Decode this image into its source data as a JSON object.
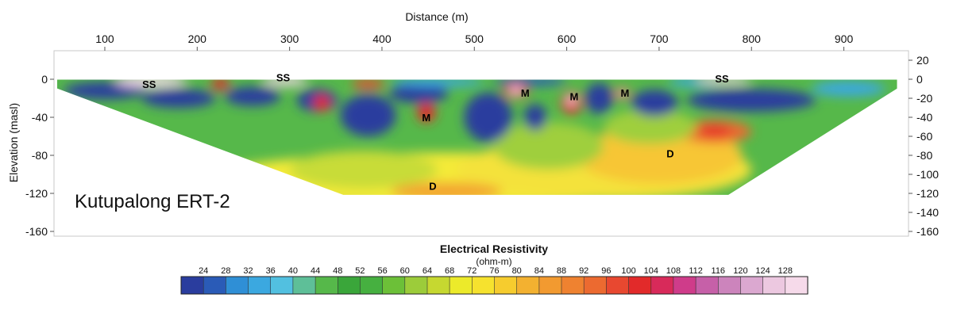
{
  "chart_data": {
    "type": "heatmap",
    "title": "Kutupalong ERT-2",
    "xlabel": "Distance (m)",
    "ylabel": "Elevation (masl)",
    "x_ticks": [
      100,
      200,
      300,
      400,
      500,
      600,
      700,
      800,
      900
    ],
    "xlim": [
      45,
      970
    ],
    "left_y_ticks": [
      0,
      -40,
      -80,
      -120,
      -160
    ],
    "right_y_ticks": [
      20,
      0,
      -20,
      -40,
      -60,
      -80,
      -100,
      -120,
      -140,
      -160
    ],
    "ylim": [
      -165,
      30
    ],
    "section_outline": [
      [
        48,
        0
      ],
      [
        958,
        0
      ],
      [
        958,
        -10
      ],
      [
        775,
        -122
      ],
      [
        358,
        -122
      ],
      [
        48,
        -10
      ]
    ],
    "zones": [
      {
        "label": "SS",
        "x": 148,
        "y": -5
      },
      {
        "label": "SS",
        "x": 293,
        "y": 2
      },
      {
        "label": "SS",
        "x": 768,
        "y": 1
      },
      {
        "label": "M",
        "x": 448,
        "y": -40
      },
      {
        "label": "M",
        "x": 555,
        "y": -14
      },
      {
        "label": "M",
        "x": 608,
        "y": -18
      },
      {
        "label": "M",
        "x": 663,
        "y": -14
      },
      {
        "label": "D",
        "x": 455,
        "y": -112
      },
      {
        "label": "D",
        "x": 712,
        "y": -78
      }
    ],
    "colorbar": {
      "title": "Electrical Resistivity",
      "unit": "(ohm-m)",
      "ticks": [
        24,
        28,
        32,
        36,
        40,
        44,
        48,
        52,
        56,
        60,
        64,
        68,
        72,
        76,
        80,
        84,
        88,
        92,
        96,
        100,
        104,
        108,
        112,
        116,
        120,
        124,
        128
      ],
      "colors": [
        "#2a3d9e",
        "#2a5bb7",
        "#2f8fd6",
        "#3ba8e0",
        "#52c0e0",
        "#5ebf98",
        "#56b84a",
        "#3aa63a",
        "#46b040",
        "#6cc038",
        "#9ccc3a",
        "#c6d830",
        "#ecea2a",
        "#f6e22e",
        "#f6cc2e",
        "#f3b130",
        "#f29a30",
        "#ef8230",
        "#ec6a30",
        "#e84830",
        "#e22a2a",
        "#d82a5a",
        "#cf3c8a",
        "#c660a8",
        "#cc84bc",
        "#dba8d0",
        "#ecc8e0",
        "#f6daea"
      ]
    }
  }
}
